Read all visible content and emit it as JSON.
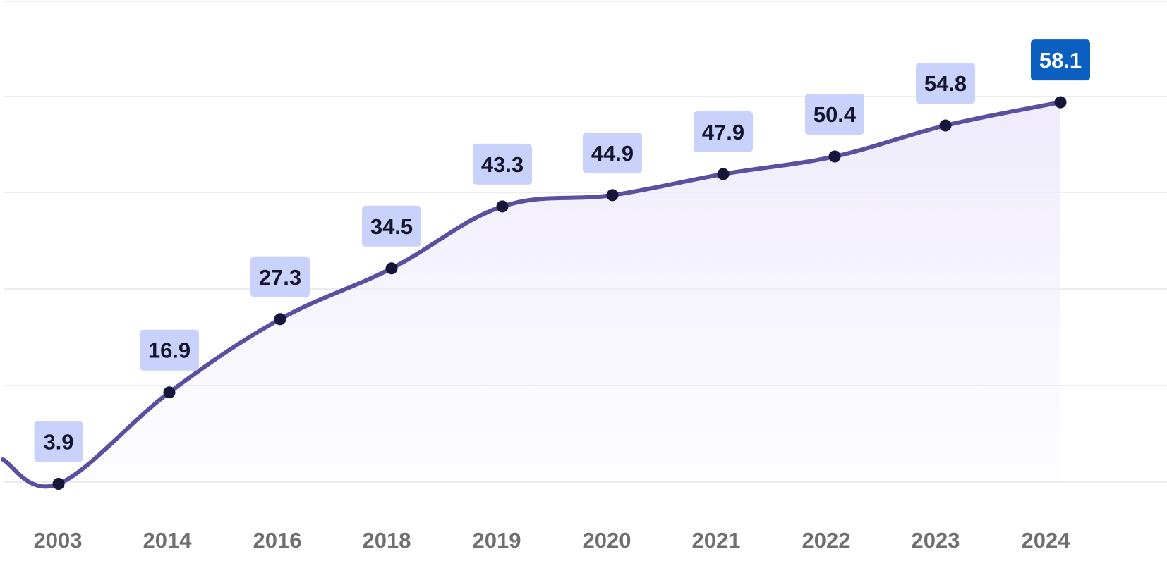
{
  "chart_data": {
    "type": "line",
    "title": "",
    "xlabel": "",
    "ylabel": "",
    "categories": [
      "2003",
      "2014",
      "2016",
      "2018",
      "2019",
      "2020",
      "2021",
      "2022",
      "2023",
      "2024"
    ],
    "values": [
      3.9,
      16.9,
      27.3,
      34.5,
      43.3,
      44.9,
      47.9,
      50.4,
      54.8,
      58.1
    ],
    "data_labels": [
      "3.9",
      "16.9",
      "27.3",
      "34.5",
      "43.3",
      "44.9",
      "47.9",
      "50.4",
      "54.8",
      "58.1"
    ],
    "highlight_index": 9,
    "ylim": [
      0,
      70
    ],
    "grid": true,
    "colors": {
      "line": "#5b4f9f",
      "point": "#16163a",
      "label_bg": "#c9d2fb",
      "highlight_bg": "#0b5fc0",
      "area_top": "#ece8fb",
      "gridline": "#e4e6ec",
      "tick_text": "#6f6f6f"
    }
  }
}
